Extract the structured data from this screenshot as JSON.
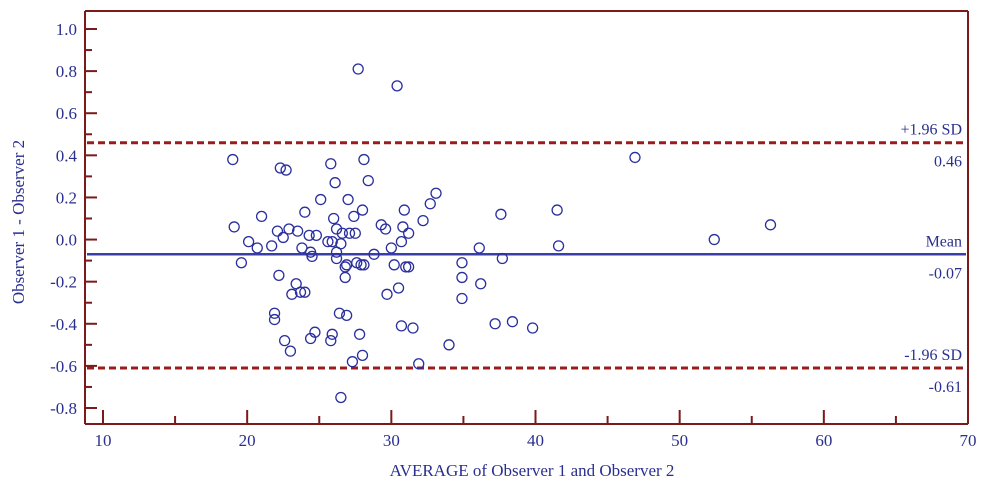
{
  "chart_data": {
    "type": "scatter",
    "xlabel": "AVERAGE of Observer 1 and Observer 2",
    "ylabel": "Observer 1 - Observer 2",
    "xlim": [
      10,
      70
    ],
    "ylim": [
      -0.8,
      1.0
    ],
    "xticks": [
      10,
      20,
      30,
      40,
      50,
      60,
      70
    ],
    "xtick_labels": [
      "10",
      "20",
      "30",
      "40",
      "50",
      "60",
      "70"
    ],
    "yticks": [
      1.0,
      0.8,
      0.6,
      0.4,
      0.2,
      0.0,
      -0.2,
      -0.4,
      -0.6,
      -0.8
    ],
    "ytick_labels": [
      "1.0",
      "0.8",
      "0.6",
      "0.4",
      "0.2",
      "0.0",
      "-0.2",
      "-0.4",
      "-0.6",
      "-0.8"
    ],
    "grid": false,
    "colors": {
      "frame": "#7a1a1a",
      "points": "#2a2f9e",
      "mean_line": "#3a3fa8",
      "sd_lines": "#9b1c1c",
      "labels": "#2a2f8f"
    },
    "reference_lines": [
      {
        "name": "+1.96 SD",
        "value": 0.46,
        "value_label": "0.46",
        "style": "dashed"
      },
      {
        "name": "Mean",
        "value": -0.07,
        "value_label": "-0.07",
        "style": "solid"
      },
      {
        "name": "-1.96 SD",
        "value": -0.61,
        "value_label": "-0.61",
        "style": "dashed"
      }
    ],
    "points": [
      [
        19.0,
        0.38
      ],
      [
        19.1,
        0.06
      ],
      [
        19.6,
        -0.11
      ],
      [
        20.1,
        -0.01
      ],
      [
        20.7,
        -0.04
      ],
      [
        21.0,
        0.11
      ],
      [
        21.7,
        -0.03
      ],
      [
        21.9,
        -0.38
      ],
      [
        21.9,
        -0.35
      ],
      [
        22.1,
        0.04
      ],
      [
        22.2,
        -0.17
      ],
      [
        22.3,
        0.34
      ],
      [
        22.5,
        0.01
      ],
      [
        22.6,
        -0.48
      ],
      [
        22.7,
        0.33
      ],
      [
        22.9,
        0.05
      ],
      [
        23.0,
        -0.53
      ],
      [
        23.1,
        -0.26
      ],
      [
        23.4,
        -0.21
      ],
      [
        23.5,
        0.04
      ],
      [
        23.7,
        -0.25
      ],
      [
        23.8,
        -0.04
      ],
      [
        24.0,
        -0.25
      ],
      [
        24.0,
        0.13
      ],
      [
        24.3,
        0.02
      ],
      [
        24.4,
        -0.06
      ],
      [
        24.5,
        -0.08
      ],
      [
        24.4,
        -0.47
      ],
      [
        24.7,
        -0.44
      ],
      [
        24.8,
        0.02
      ],
      [
        25.1,
        0.19
      ],
      [
        25.6,
        -0.01
      ],
      [
        25.9,
        -0.01
      ],
      [
        25.8,
        -0.48
      ],
      [
        25.9,
        -0.45
      ],
      [
        25.8,
        0.36
      ],
      [
        26.0,
        0.1
      ],
      [
        26.1,
        0.27
      ],
      [
        26.2,
        0.05
      ],
      [
        26.2,
        -0.06
      ],
      [
        26.2,
        -0.09
      ],
      [
        26.4,
        -0.35
      ],
      [
        26.5,
        -0.02
      ],
      [
        26.5,
        -0.75
      ],
      [
        26.6,
        0.03
      ],
      [
        26.8,
        -0.13
      ],
      [
        26.8,
        -0.18
      ],
      [
        26.9,
        -0.36
      ],
      [
        26.9,
        -0.12
      ],
      [
        27.0,
        0.19
      ],
      [
        27.1,
        0.03
      ],
      [
        27.3,
        -0.58
      ],
      [
        27.4,
        0.11
      ],
      [
        27.5,
        0.03
      ],
      [
        27.6,
        -0.11
      ],
      [
        27.7,
        0.81
      ],
      [
        27.8,
        -0.45
      ],
      [
        27.9,
        -0.12
      ],
      [
        28.0,
        -0.55
      ],
      [
        28.0,
        0.14
      ],
      [
        28.1,
        0.38
      ],
      [
        28.1,
        -0.12
      ],
      [
        28.4,
        0.28
      ],
      [
        28.8,
        -0.07
      ],
      [
        29.3,
        0.07
      ],
      [
        29.6,
        0.05
      ],
      [
        29.7,
        -0.26
      ],
      [
        30.0,
        -0.04
      ],
      [
        30.2,
        -0.12
      ],
      [
        30.4,
        0.73
      ],
      [
        30.5,
        -0.23
      ],
      [
        30.7,
        -0.01
      ],
      [
        30.7,
        -0.41
      ],
      [
        30.8,
        0.06
      ],
      [
        30.9,
        0.14
      ],
      [
        31.0,
        -0.13
      ],
      [
        31.2,
        0.03
      ],
      [
        31.2,
        -0.13
      ],
      [
        31.5,
        -0.42
      ],
      [
        31.9,
        -0.59
      ],
      [
        32.2,
        0.09
      ],
      [
        32.7,
        0.17
      ],
      [
        33.1,
        0.22
      ],
      [
        34.0,
        -0.5
      ],
      [
        34.9,
        -0.11
      ],
      [
        34.9,
        -0.18
      ],
      [
        34.9,
        -0.28
      ],
      [
        36.1,
        -0.04
      ],
      [
        36.2,
        -0.21
      ],
      [
        37.2,
        -0.4
      ],
      [
        37.6,
        0.12
      ],
      [
        37.7,
        -0.09
      ],
      [
        38.4,
        -0.39
      ],
      [
        39.8,
        -0.42
      ],
      [
        41.5,
        0.14
      ],
      [
        41.6,
        -0.03
      ],
      [
        46.9,
        0.39
      ],
      [
        52.4,
        0.0
      ],
      [
        56.3,
        0.07
      ]
    ]
  }
}
